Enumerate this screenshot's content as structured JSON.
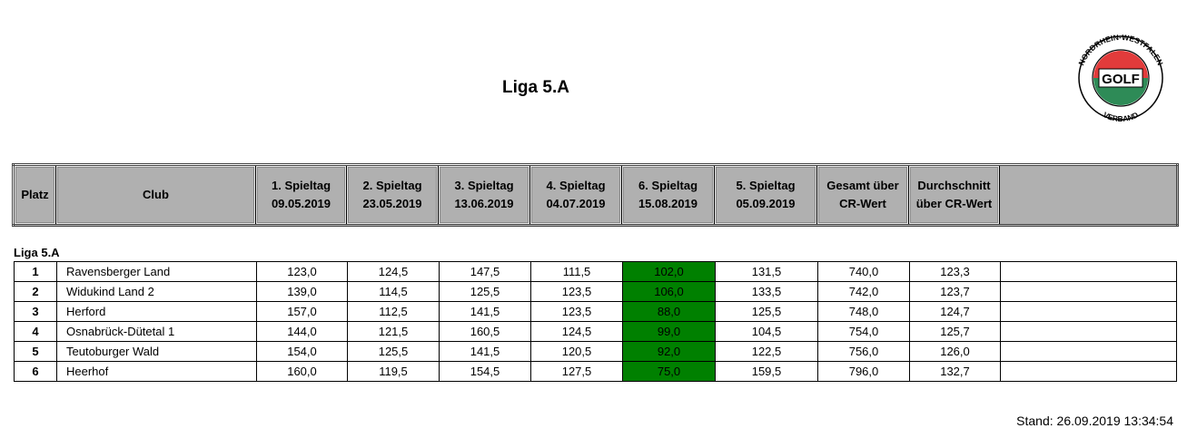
{
  "title": "Liga 5.A",
  "logo": {
    "ring_top": "NORDRHEIN-WESTFALEN",
    "center": "GOLF",
    "ring_bottom": "VERBAND",
    "colors": {
      "top": "#e23b3b",
      "bottom": "#2e8b57",
      "ring": "#ffffff"
    }
  },
  "header": {
    "platz": "Platz",
    "club": "Club",
    "rounds": [
      {
        "name": "1. Spieltag",
        "date": "09.05.2019"
      },
      {
        "name": "2. Spieltag",
        "date": "23.05.2019"
      },
      {
        "name": "3. Spieltag",
        "date": "13.06.2019"
      },
      {
        "name": "4. Spieltag",
        "date": "04.07.2019"
      },
      {
        "name": "6. Spieltag",
        "date": "15.08.2019"
      },
      {
        "name": "5. Spieltag",
        "date": "05.09.2019"
      }
    ],
    "total_l1": "Gesamt über",
    "total_l2": "CR-Wert",
    "avg_l1": "Durchschnitt",
    "avg_l2": "über CR-Wert"
  },
  "section_label": "Liga 5.A",
  "highlight_color": "#008000",
  "rows": [
    {
      "rank": "1",
      "club": "Ravensberger Land",
      "scores": [
        "123,0",
        "124,5",
        "147,5",
        "111,5",
        "102,0",
        "131,5"
      ],
      "total": "740,0",
      "avg": "123,3"
    },
    {
      "rank": "2",
      "club": "Widukind Land 2",
      "scores": [
        "139,0",
        "114,5",
        "125,5",
        "123,5",
        "106,0",
        "133,5"
      ],
      "total": "742,0",
      "avg": "123,7"
    },
    {
      "rank": "3",
      "club": "Herford",
      "scores": [
        "157,0",
        "112,5",
        "141,5",
        "123,5",
        "88,0",
        "125,5"
      ],
      "total": "748,0",
      "avg": "124,7"
    },
    {
      "rank": "4",
      "club": "Osnabrück-Dütetal 1",
      "scores": [
        "144,0",
        "121,5",
        "160,5",
        "124,5",
        "99,0",
        "104,5"
      ],
      "total": "754,0",
      "avg": "125,7"
    },
    {
      "rank": "5",
      "club": "Teutoburger Wald",
      "scores": [
        "154,0",
        "125,5",
        "141,5",
        "120,5",
        "92,0",
        "122,5"
      ],
      "total": "756,0",
      "avg": "126,0"
    },
    {
      "rank": "6",
      "club": "Heerhof",
      "scores": [
        "160,0",
        "119,5",
        "154,5",
        "127,5",
        "75,0",
        "159,5"
      ],
      "total": "796,0",
      "avg": "132,7"
    }
  ],
  "stand": "Stand: 26.09.2019 13:34:54"
}
